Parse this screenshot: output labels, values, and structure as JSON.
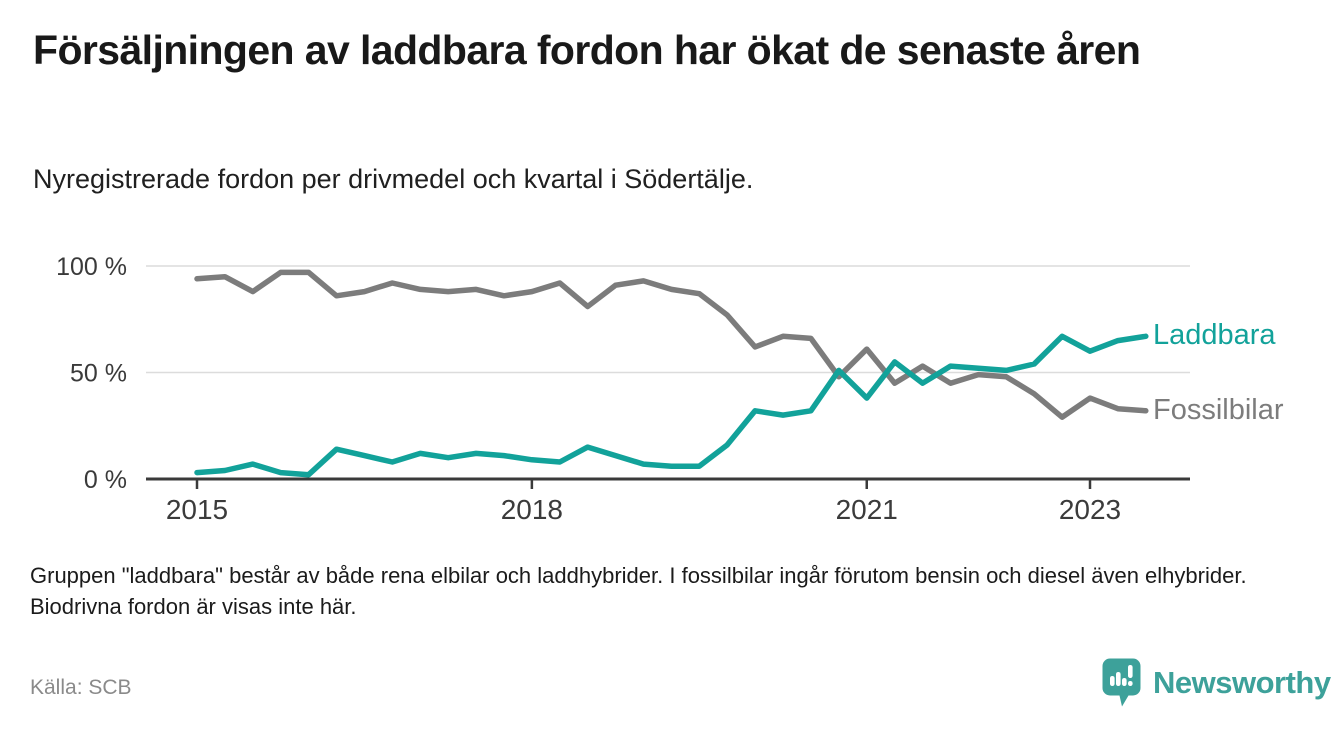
{
  "header": {
    "title": "Försäljningen av laddbara fordon har ökat de senaste åren",
    "subtitle": "Nyregistrerade fordon per drivmedel och kvartal i Södertälje."
  },
  "chart_data": {
    "type": "line",
    "x_quarters": [
      "2015Q1",
      "2015Q2",
      "2015Q3",
      "2015Q4",
      "2016Q1",
      "2016Q2",
      "2016Q3",
      "2016Q4",
      "2017Q1",
      "2017Q2",
      "2017Q3",
      "2017Q4",
      "2018Q1",
      "2018Q2",
      "2018Q3",
      "2018Q4",
      "2019Q1",
      "2019Q2",
      "2019Q3",
      "2019Q4",
      "2020Q1",
      "2020Q2",
      "2020Q3",
      "2020Q4",
      "2021Q1",
      "2021Q2",
      "2021Q3",
      "2021Q4",
      "2022Q1",
      "2022Q2",
      "2022Q3",
      "2022Q4",
      "2023Q1",
      "2023Q2",
      "2023Q3"
    ],
    "series": [
      {
        "name": "Fossilbilar",
        "color": "#7c7c7c",
        "values": [
          94,
          95,
          88,
          97,
          97,
          86,
          88,
          92,
          89,
          88,
          89,
          86,
          88,
          92,
          81,
          91,
          93,
          89,
          87,
          77,
          62,
          67,
          66,
          48,
          61,
          45,
          53,
          45,
          49,
          48,
          40,
          29,
          38,
          33,
          32
        ]
      },
      {
        "name": "Laddbara",
        "color": "#12a29a",
        "values": [
          3,
          4,
          7,
          3,
          2,
          14,
          11,
          8,
          12,
          10,
          12,
          11,
          9,
          8,
          15,
          11,
          7,
          6,
          6,
          16,
          32,
          30,
          32,
          51,
          38,
          55,
          45,
          53,
          52,
          51,
          54,
          67,
          60,
          65,
          67
        ]
      }
    ],
    "unit": "%",
    "ylim": [
      0,
      100
    ],
    "y_ticks": [
      {
        "label": "100 %",
        "value": 100
      },
      {
        "label": "50 %",
        "value": 50
      },
      {
        "label": "0 %",
        "value": 0
      }
    ],
    "x_ticks": [
      {
        "label": "2015",
        "index": 0
      },
      {
        "label": "2018",
        "index": 12
      },
      {
        "label": "2021",
        "index": 24
      },
      {
        "label": "2023",
        "index": 32
      }
    ],
    "grid": "horizontal",
    "legend_position": "end-of-line-labels",
    "axis_color": "#3a3a3a",
    "grid_color": "#dcdcdc"
  },
  "footnote": "Gruppen \"laddbara\" består av både rena elbilar och laddhybrider. I fossilbilar ingår förutom bensin och diesel även elhybrider. Biodrivna fordon är visas inte här.",
  "source": "Källa: SCB",
  "logo": {
    "text": "Newsworthy",
    "color": "#3da19a",
    "icon": "newsworthy-speech-bubble-bar-chart-icon"
  }
}
